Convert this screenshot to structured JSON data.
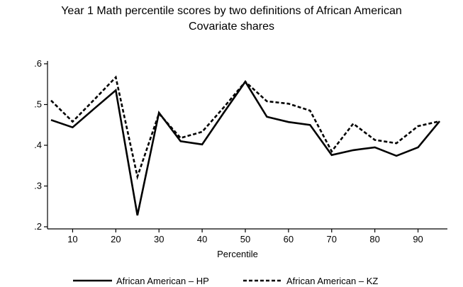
{
  "chart_data": {
    "type": "line",
    "title": "Year 1 Math percentile scores by two definitions of African American",
    "subtitle": "Covariate shares",
    "xlabel": "Percentile",
    "ylabel": "",
    "xlim": [
      5,
      95
    ],
    "ylim": [
      0.2,
      0.6
    ],
    "x_ticks": [
      10,
      20,
      30,
      40,
      50,
      60,
      70,
      80,
      90
    ],
    "y_ticks": [
      0.2,
      0.3,
      0.4,
      0.5,
      0.6
    ],
    "y_tick_labels": [
      ".2",
      ".3",
      ".4",
      ".5",
      ".6"
    ],
    "grid": false,
    "legend_position": "bottom",
    "x": [
      5,
      10,
      15,
      20,
      25,
      30,
      35,
      40,
      45,
      50,
      55,
      60,
      65,
      70,
      75,
      80,
      85,
      90,
      95
    ],
    "series": [
      {
        "name": "African American – HP",
        "style": "solid",
        "color": "#000000",
        "values": [
          0.462,
          0.444,
          0.49,
          0.535,
          0.228,
          0.48,
          0.41,
          0.402,
          0.48,
          0.556,
          0.47,
          0.457,
          0.45,
          0.376,
          0.388,
          0.395,
          0.374,
          0.395,
          0.459
        ]
      },
      {
        "name": "African American – KZ",
        "style": "dashed",
        "color": "#000000",
        "values": [
          0.51,
          0.458,
          0.512,
          0.567,
          0.323,
          0.478,
          0.418,
          0.433,
          0.493,
          0.556,
          0.508,
          0.502,
          0.485,
          0.385,
          0.453,
          0.413,
          0.405,
          0.447,
          0.459
        ]
      }
    ]
  }
}
